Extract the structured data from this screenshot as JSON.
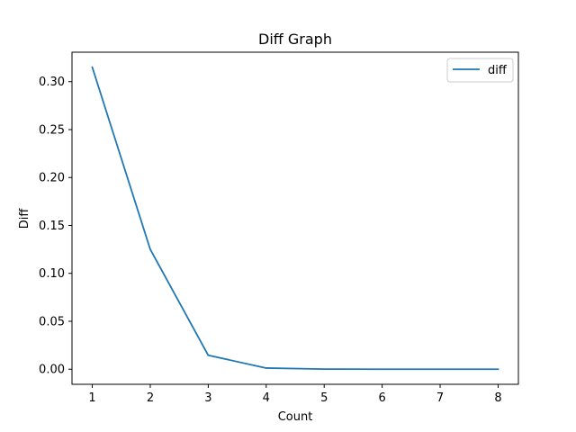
{
  "chart_data": {
    "type": "line",
    "title": "Diff Graph",
    "xlabel": "Count",
    "ylabel": "Diff",
    "x": [
      1,
      2,
      3,
      4,
      5,
      6,
      7,
      8
    ],
    "series": [
      {
        "name": "diff",
        "color": "#1f77b4",
        "values": [
          0.315,
          0.125,
          0.0145,
          0.0012,
          0.0001,
          0.0,
          0.0,
          0.0
        ]
      }
    ],
    "xlim": [
      0.65,
      8.35
    ],
    "ylim": [
      -0.01575,
      0.33075
    ],
    "x_ticks": [
      1,
      2,
      3,
      4,
      5,
      6,
      7,
      8
    ],
    "x_tick_labels": [
      "1",
      "2",
      "3",
      "4",
      "5",
      "6",
      "7",
      "8"
    ],
    "y_ticks": [
      0.0,
      0.05,
      0.1,
      0.15,
      0.2,
      0.25,
      0.3
    ],
    "y_tick_labels": [
      "0.00",
      "0.05",
      "0.10",
      "0.15",
      "0.20",
      "0.25",
      "0.30"
    ],
    "grid": false,
    "legend_position": "upper right"
  }
}
